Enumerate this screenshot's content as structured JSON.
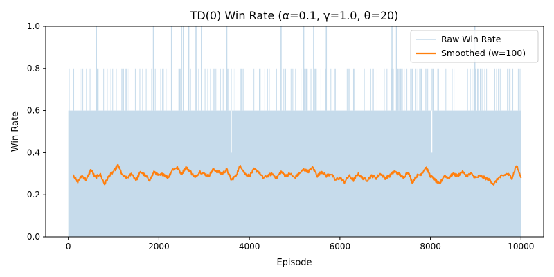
{
  "chart_data": {
    "type": "line",
    "title": "TD(0) Win Rate (α=0.1, γ=1.0, θ=20)",
    "xlabel": "Episode",
    "ylabel": "Win Rate",
    "xlim": [
      -500,
      10500
    ],
    "ylim": [
      0.0,
      1.0
    ],
    "x_ticks": [
      {
        "value": 0,
        "label": "0"
      },
      {
        "value": 2000,
        "label": "2000"
      },
      {
        "value": 4000,
        "label": "4000"
      },
      {
        "value": 6000,
        "label": "6000"
      },
      {
        "value": 8000,
        "label": "8000"
      },
      {
        "value": 10000,
        "label": "10000"
      }
    ],
    "y_ticks": [
      {
        "value": 0.0,
        "label": "0.0"
      },
      {
        "value": 0.2,
        "label": "0.2"
      },
      {
        "value": 0.4,
        "label": "0.4"
      },
      {
        "value": 0.6,
        "label": "0.6"
      },
      {
        "value": 0.8,
        "label": "0.8"
      },
      {
        "value": 1.0,
        "label": "1.0"
      }
    ],
    "grid": false,
    "legend": {
      "position": "upper right",
      "entries": [
        "Raw Win Rate",
        "Smoothed (w=100)"
      ]
    },
    "series": [
      {
        "name": "Raw Win Rate",
        "color": "#c6dbeb",
        "note_style": "dense oscillation filling 0 to 0.6 band with frequent spikes to 0.8 and occasional spikes to 1.0",
        "spikes_to_1": [
          620,
          1880,
          2280,
          2500,
          2540,
          2660,
          2820,
          2940,
          3500,
          4700,
          5200,
          5420,
          5700,
          7150,
          7250,
          8980
        ],
        "dips_to_0_4": [
          3600,
          8030
        ],
        "x_range": [
          0,
          10000
        ]
      },
      {
        "name": "Smoothed (w=100)",
        "color": "#ff7f0e",
        "x": [
          100,
          200,
          300,
          400,
          500,
          600,
          700,
          800,
          900,
          1000,
          1100,
          1200,
          1300,
          1400,
          1500,
          1600,
          1700,
          1800,
          1900,
          2000,
          2100,
          2200,
          2300,
          2400,
          2500,
          2600,
          2700,
          2800,
          2900,
          3000,
          3100,
          3200,
          3300,
          3400,
          3500,
          3600,
          3700,
          3800,
          3900,
          4000,
          4100,
          4200,
          4300,
          4400,
          4500,
          4600,
          4700,
          4800,
          4900,
          5000,
          5100,
          5200,
          5300,
          5400,
          5500,
          5600,
          5700,
          5800,
          5900,
          6000,
          6100,
          6200,
          6300,
          6400,
          6500,
          6600,
          6700,
          6800,
          6900,
          7000,
          7100,
          7200,
          7300,
          7400,
          7500,
          7600,
          7700,
          7800,
          7900,
          8000,
          8100,
          8200,
          8300,
          8400,
          8500,
          8600,
          8700,
          8800,
          8900,
          9000,
          9100,
          9200,
          9300,
          9400,
          9500,
          9600,
          9700,
          9800,
          9900,
          10000
        ],
        "y": [
          0.3,
          0.26,
          0.29,
          0.27,
          0.32,
          0.28,
          0.3,
          0.25,
          0.29,
          0.31,
          0.34,
          0.29,
          0.28,
          0.3,
          0.27,
          0.31,
          0.29,
          0.27,
          0.31,
          0.29,
          0.3,
          0.28,
          0.32,
          0.33,
          0.3,
          0.33,
          0.31,
          0.28,
          0.31,
          0.3,
          0.29,
          0.32,
          0.31,
          0.3,
          0.32,
          0.27,
          0.29,
          0.34,
          0.3,
          0.29,
          0.32,
          0.31,
          0.28,
          0.29,
          0.3,
          0.28,
          0.31,
          0.29,
          0.3,
          0.28,
          0.3,
          0.32,
          0.31,
          0.33,
          0.29,
          0.31,
          0.29,
          0.3,
          0.27,
          0.28,
          0.26,
          0.29,
          0.27,
          0.3,
          0.28,
          0.27,
          0.29,
          0.28,
          0.3,
          0.28,
          0.29,
          0.31,
          0.3,
          0.28,
          0.31,
          0.26,
          0.29,
          0.3,
          0.33,
          0.29,
          0.27,
          0.25,
          0.29,
          0.28,
          0.3,
          0.29,
          0.31,
          0.29,
          0.3,
          0.28,
          0.29,
          0.28,
          0.27,
          0.25,
          0.28,
          0.29,
          0.3,
          0.28,
          0.34,
          0.28
        ]
      }
    ]
  }
}
